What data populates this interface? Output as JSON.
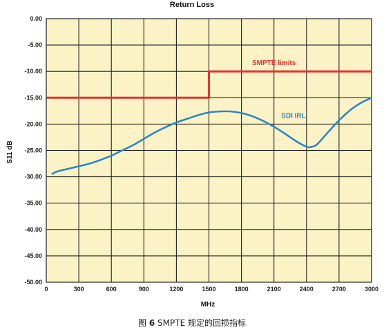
{
  "chart_data": {
    "type": "line",
    "title": "Return Loss",
    "xlabel": "MHz",
    "ylabel": "S11 dB",
    "xlim": [
      0,
      3000
    ],
    "ylim": [
      -50,
      0
    ],
    "x_ticks": [
      "0",
      "300",
      "600",
      "900",
      "1200",
      "1500",
      "1800",
      "2100",
      "2400",
      "2700",
      "3000"
    ],
    "x_tick_values": [
      0,
      300,
      600,
      900,
      1200,
      1500,
      1800,
      2100,
      2400,
      2700,
      3000
    ],
    "y_ticks": [
      "0.00",
      "-5.00",
      "-10.00",
      "-15.00",
      "-20.00",
      "-25.00",
      "-30.00",
      "-35.00",
      "-40.00",
      "-45.00",
      "-50.00"
    ],
    "y_tick_values": [
      0,
      -5,
      -10,
      -15,
      -20,
      -25,
      -30,
      -35,
      -40,
      -45,
      -50
    ],
    "grid": true,
    "background_color": "#fbf3c6",
    "series": [
      {
        "name": "SMPTE limits",
        "color": "#e8302a",
        "x": [
          5,
          1500,
          1500,
          3000
        ],
        "y": [
          -15,
          -15,
          -10,
          -10
        ]
      },
      {
        "name": "SDI IRL",
        "color": "#2d86c4",
        "x": [
          50,
          100,
          200,
          300,
          400,
          500,
          600,
          700,
          800,
          900,
          1000,
          1100,
          1200,
          1300,
          1400,
          1500,
          1600,
          1700,
          1800,
          1900,
          2000,
          2100,
          2200,
          2300,
          2400,
          2450,
          2500,
          2600,
          2700,
          2800,
          2900,
          3000
        ],
        "y": [
          -29.5,
          -29.0,
          -28.5,
          -28.0,
          -27.5,
          -26.8,
          -26.0,
          -25.0,
          -24.0,
          -22.8,
          -21.6,
          -20.6,
          -19.7,
          -19.0,
          -18.3,
          -17.8,
          -17.6,
          -17.6,
          -17.9,
          -18.5,
          -19.4,
          -20.5,
          -21.8,
          -23.2,
          -24.3,
          -24.3,
          -23.8,
          -21.5,
          -19.3,
          -17.4,
          -16.0,
          -15.0
        ]
      }
    ]
  },
  "caption": {
    "prefix": "图 ",
    "number": "6",
    "text": " SMPTE  规定的回损指标"
  }
}
